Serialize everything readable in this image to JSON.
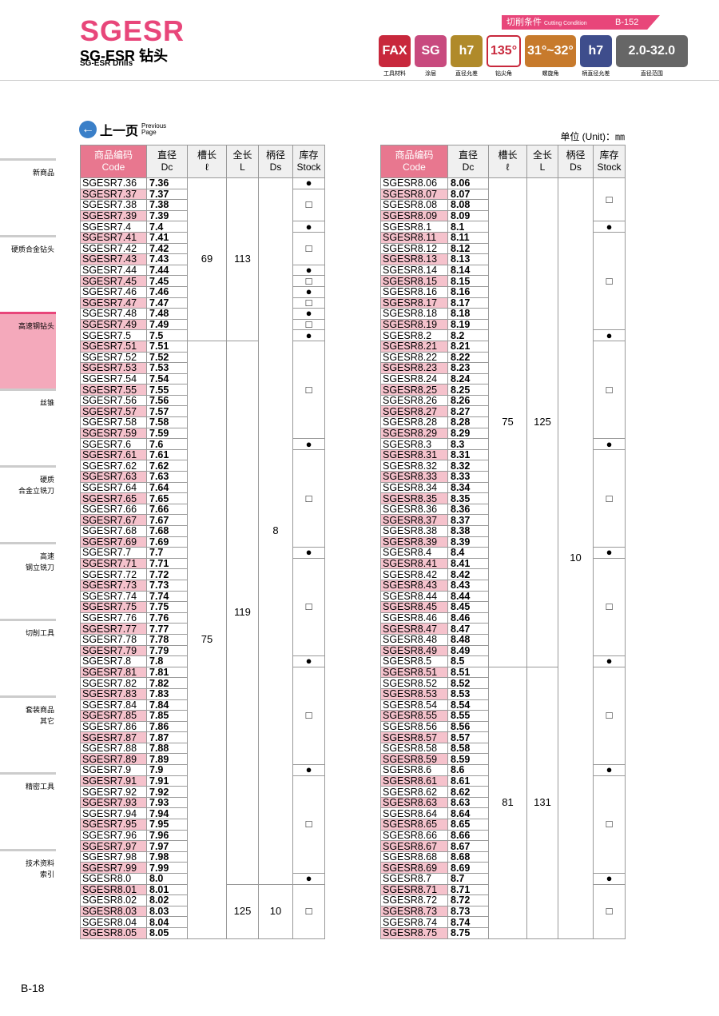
{
  "header": {
    "title": "SGESR",
    "subtitle": "SG-ESR 钻头",
    "subtitle_en": "SG-ESR Drills",
    "condition": "切削条件",
    "condition_en": "Cutting Condition",
    "condition_page": "B-152",
    "icons": [
      {
        "text": "FAX",
        "caption": "工具材料"
      },
      {
        "text": "SG",
        "caption": "涂层"
      },
      {
        "text": "h7",
        "caption": "直径允差"
      },
      {
        "text": "135°",
        "caption": "钻尖角"
      },
      {
        "text": "31°~32°",
        "caption": "螺旋角"
      },
      {
        "text": "h7",
        "caption": "柄直径允差"
      },
      {
        "text": "2.0-32.0",
        "caption": "直径范围"
      }
    ]
  },
  "side_nav": [
    "新商品",
    "硬质合金钻头",
    "高速钢钻头",
    "丝锥",
    "硬质\n合金立铣刀",
    "高速\n钢立铣刀",
    "切削工具",
    "套装商品\n其它",
    "精密工具",
    "技术资料\n索引"
  ],
  "back": {
    "label": "上一页",
    "sub": "Previous\nPage"
  },
  "unit": "单位 (Unit)：㎜",
  "columns": [
    [
      "商品编码",
      "Code"
    ],
    [
      "直径",
      "Dc"
    ],
    [
      "槽长",
      "ℓ"
    ],
    [
      "全长",
      "L"
    ],
    [
      "柄径",
      "Ds"
    ],
    [
      "库存",
      "Stock"
    ]
  ],
  "tables": [
    {
      "rows": [
        [
          "SGESR7.36",
          "7.36"
        ],
        [
          "SGESR7.37",
          "7.37"
        ],
        [
          "SGESR7.38",
          "7.38"
        ],
        [
          "SGESR7.39",
          "7.39"
        ],
        [
          "SGESR7.4",
          "7.4"
        ],
        [
          "SGESR7.41",
          "7.41"
        ],
        [
          "SGESR7.42",
          "7.42"
        ],
        [
          "SGESR7.43",
          "7.43"
        ],
        [
          "SGESR7.44",
          "7.44"
        ],
        [
          "SGESR7.45",
          "7.45"
        ],
        [
          "SGESR7.46",
          "7.46"
        ],
        [
          "SGESR7.47",
          "7.47"
        ],
        [
          "SGESR7.48",
          "7.48"
        ],
        [
          "SGESR7.49",
          "7.49"
        ],
        [
          "SGESR7.5",
          "7.5"
        ],
        [
          "SGESR7.51",
          "7.51"
        ],
        [
          "SGESR7.52",
          "7.52"
        ],
        [
          "SGESR7.53",
          "7.53"
        ],
        [
          "SGESR7.54",
          "7.54"
        ],
        [
          "SGESR7.55",
          "7.55"
        ],
        [
          "SGESR7.56",
          "7.56"
        ],
        [
          "SGESR7.57",
          "7.57"
        ],
        [
          "SGESR7.58",
          "7.58"
        ],
        [
          "SGESR7.59",
          "7.59"
        ],
        [
          "SGESR7.6",
          "7.6"
        ],
        [
          "SGESR7.61",
          "7.61"
        ],
        [
          "SGESR7.62",
          "7.62"
        ],
        [
          "SGESR7.63",
          "7.63"
        ],
        [
          "SGESR7.64",
          "7.64"
        ],
        [
          "SGESR7.65",
          "7.65"
        ],
        [
          "SGESR7.66",
          "7.66"
        ],
        [
          "SGESR7.67",
          "7.67"
        ],
        [
          "SGESR7.68",
          "7.68"
        ],
        [
          "SGESR7.69",
          "7.69"
        ],
        [
          "SGESR7.7",
          "7.7"
        ],
        [
          "SGESR7.71",
          "7.71"
        ],
        [
          "SGESR7.72",
          "7.72"
        ],
        [
          "SGESR7.73",
          "7.73"
        ],
        [
          "SGESR7.74",
          "7.74"
        ],
        [
          "SGESR7.75",
          "7.75"
        ],
        [
          "SGESR7.76",
          "7.76"
        ],
        [
          "SGESR7.77",
          "7.77"
        ],
        [
          "SGESR7.78",
          "7.78"
        ],
        [
          "SGESR7.79",
          "7.79"
        ],
        [
          "SGESR7.8",
          "7.8"
        ],
        [
          "SGESR7.81",
          "7.81"
        ],
        [
          "SGESR7.82",
          "7.82"
        ],
        [
          "SGESR7.83",
          "7.83"
        ],
        [
          "SGESR7.84",
          "7.84"
        ],
        [
          "SGESR7.85",
          "7.85"
        ],
        [
          "SGESR7.86",
          "7.86"
        ],
        [
          "SGESR7.87",
          "7.87"
        ],
        [
          "SGESR7.88",
          "7.88"
        ],
        [
          "SGESR7.89",
          "7.89"
        ],
        [
          "SGESR7.9",
          "7.9"
        ],
        [
          "SGESR7.91",
          "7.91"
        ],
        [
          "SGESR7.92",
          "7.92"
        ],
        [
          "SGESR7.93",
          "7.93"
        ],
        [
          "SGESR7.94",
          "7.94"
        ],
        [
          "SGESR7.95",
          "7.95"
        ],
        [
          "SGESR7.96",
          "7.96"
        ],
        [
          "SGESR7.97",
          "7.97"
        ],
        [
          "SGESR7.98",
          "7.98"
        ],
        [
          "SGESR7.99",
          "7.99"
        ],
        [
          "SGESR8.0",
          "8.0"
        ],
        [
          "SGESR8.01",
          "8.01"
        ],
        [
          "SGESR8.02",
          "8.02"
        ],
        [
          "SGESR8.03",
          "8.03"
        ],
        [
          "SGESR8.04",
          "8.04"
        ],
        [
          "SGESR8.05",
          "8.05"
        ]
      ],
      "flute": [
        {
          "text": "69",
          "span": 15
        },
        {
          "text": "75",
          "span": 55
        }
      ],
      "length": [
        {
          "text": "113",
          "span": 15
        },
        {
          "text": "119",
          "span": 50
        },
        {
          "text": "125",
          "span": 5
        }
      ],
      "shank": [
        {
          "text": "8",
          "span": 65
        },
        {
          "text": "10",
          "span": 5
        }
      ],
      "stock": [
        {
          "text": "●",
          "span": 1
        },
        {
          "text": "□",
          "span": 3
        },
        {
          "text": "●",
          "span": 1
        },
        {
          "text": "□",
          "span": 3
        },
        {
          "text": "●",
          "span": 1
        },
        {
          "text": "□",
          "span": 1
        },
        {
          "text": "●",
          "span": 1
        },
        {
          "text": "□",
          "span": 1
        },
        {
          "text": "●",
          "span": 1
        },
        {
          "text": "□",
          "span": 1
        },
        {
          "text": "●",
          "span": 1
        },
        {
          "text": "□",
          "span": 9
        },
        {
          "text": "●",
          "span": 1
        },
        {
          "text": "□",
          "span": 9
        },
        {
          "text": "●",
          "span": 1
        },
        {
          "text": "□",
          "span": 9
        },
        {
          "text": "●",
          "span": 1
        },
        {
          "text": "□",
          "span": 9
        },
        {
          "text": "●",
          "span": 1
        },
        {
          "text": "□",
          "span": 9
        },
        {
          "text": "●",
          "span": 1
        },
        {
          "text": "□",
          "span": 5
        }
      ]
    },
    {
      "rows": [
        [
          "SGESR8.06",
          "8.06"
        ],
        [
          "SGESR8.07",
          "8.07"
        ],
        [
          "SGESR8.08",
          "8.08"
        ],
        [
          "SGESR8.09",
          "8.09"
        ],
        [
          "SGESR8.1",
          "8.1"
        ],
        [
          "SGESR8.11",
          "8.11"
        ],
        [
          "SGESR8.12",
          "8.12"
        ],
        [
          "SGESR8.13",
          "8.13"
        ],
        [
          "SGESR8.14",
          "8.14"
        ],
        [
          "SGESR8.15",
          "8.15"
        ],
        [
          "SGESR8.16",
          "8.16"
        ],
        [
          "SGESR8.17",
          "8.17"
        ],
        [
          "SGESR8.18",
          "8.18"
        ],
        [
          "SGESR8.19",
          "8.19"
        ],
        [
          "SGESR8.2",
          "8.2"
        ],
        [
          "SGESR8.21",
          "8.21"
        ],
        [
          "SGESR8.22",
          "8.22"
        ],
        [
          "SGESR8.23",
          "8.23"
        ],
        [
          "SGESR8.24",
          "8.24"
        ],
        [
          "SGESR8.25",
          "8.25"
        ],
        [
          "SGESR8.26",
          "8.26"
        ],
        [
          "SGESR8.27",
          "8.27"
        ],
        [
          "SGESR8.28",
          "8.28"
        ],
        [
          "SGESR8.29",
          "8.29"
        ],
        [
          "SGESR8.3",
          "8.3"
        ],
        [
          "SGESR8.31",
          "8.31"
        ],
        [
          "SGESR8.32",
          "8.32"
        ],
        [
          "SGESR8.33",
          "8.33"
        ],
        [
          "SGESR8.34",
          "8.34"
        ],
        [
          "SGESR8.35",
          "8.35"
        ],
        [
          "SGESR8.36",
          "8.36"
        ],
        [
          "SGESR8.37",
          "8.37"
        ],
        [
          "SGESR8.38",
          "8.38"
        ],
        [
          "SGESR8.39",
          "8.39"
        ],
        [
          "SGESR8.4",
          "8.4"
        ],
        [
          "SGESR8.41",
          "8.41"
        ],
        [
          "SGESR8.42",
          "8.42"
        ],
        [
          "SGESR8.43",
          "8.43"
        ],
        [
          "SGESR8.44",
          "8.44"
        ],
        [
          "SGESR8.45",
          "8.45"
        ],
        [
          "SGESR8.46",
          "8.46"
        ],
        [
          "SGESR8.47",
          "8.47"
        ],
        [
          "SGESR8.48",
          "8.48"
        ],
        [
          "SGESR8.49",
          "8.49"
        ],
        [
          "SGESR8.5",
          "8.5"
        ],
        [
          "SGESR8.51",
          "8.51"
        ],
        [
          "SGESR8.52",
          "8.52"
        ],
        [
          "SGESR8.53",
          "8.53"
        ],
        [
          "SGESR8.54",
          "8.54"
        ],
        [
          "SGESR8.55",
          "8.55"
        ],
        [
          "SGESR8.56",
          "8.56"
        ],
        [
          "SGESR8.57",
          "8.57"
        ],
        [
          "SGESR8.58",
          "8.58"
        ],
        [
          "SGESR8.59",
          "8.59"
        ],
        [
          "SGESR8.6",
          "8.6"
        ],
        [
          "SGESR8.61",
          "8.61"
        ],
        [
          "SGESR8.62",
          "8.62"
        ],
        [
          "SGESR8.63",
          "8.63"
        ],
        [
          "SGESR8.64",
          "8.64"
        ],
        [
          "SGESR8.65",
          "8.65"
        ],
        [
          "SGESR8.66",
          "8.66"
        ],
        [
          "SGESR8.67",
          "8.67"
        ],
        [
          "SGESR8.68",
          "8.68"
        ],
        [
          "SGESR8.69",
          "8.69"
        ],
        [
          "SGESR8.7",
          "8.7"
        ],
        [
          "SGESR8.71",
          "8.71"
        ],
        [
          "SGESR8.72",
          "8.72"
        ],
        [
          "SGESR8.73",
          "8.73"
        ],
        [
          "SGESR8.74",
          "8.74"
        ],
        [
          "SGESR8.75",
          "8.75"
        ]
      ],
      "flute": [
        {
          "text": "75",
          "span": 45
        },
        {
          "text": "81",
          "span": 25
        }
      ],
      "length": [
        {
          "text": "125",
          "span": 45
        },
        {
          "text": "131",
          "span": 25
        }
      ],
      "shank": [
        {
          "text": "10",
          "span": 70
        }
      ],
      "stock": [
        {
          "text": "□",
          "span": 4
        },
        {
          "text": "●",
          "span": 1
        },
        {
          "text": "□",
          "span": 9
        },
        {
          "text": "●",
          "span": 1
        },
        {
          "text": "□",
          "span": 9
        },
        {
          "text": "●",
          "span": 1
        },
        {
          "text": "□",
          "span": 9
        },
        {
          "text": "●",
          "span": 1
        },
        {
          "text": "□",
          "span": 9
        },
        {
          "text": "●",
          "span": 1
        },
        {
          "text": "□",
          "span": 9
        },
        {
          "text": "●",
          "span": 1
        },
        {
          "text": "□",
          "span": 9
        },
        {
          "text": "●",
          "span": 1
        },
        {
          "text": "□",
          "span": 5
        }
      ]
    }
  ],
  "page_number": "B-18"
}
